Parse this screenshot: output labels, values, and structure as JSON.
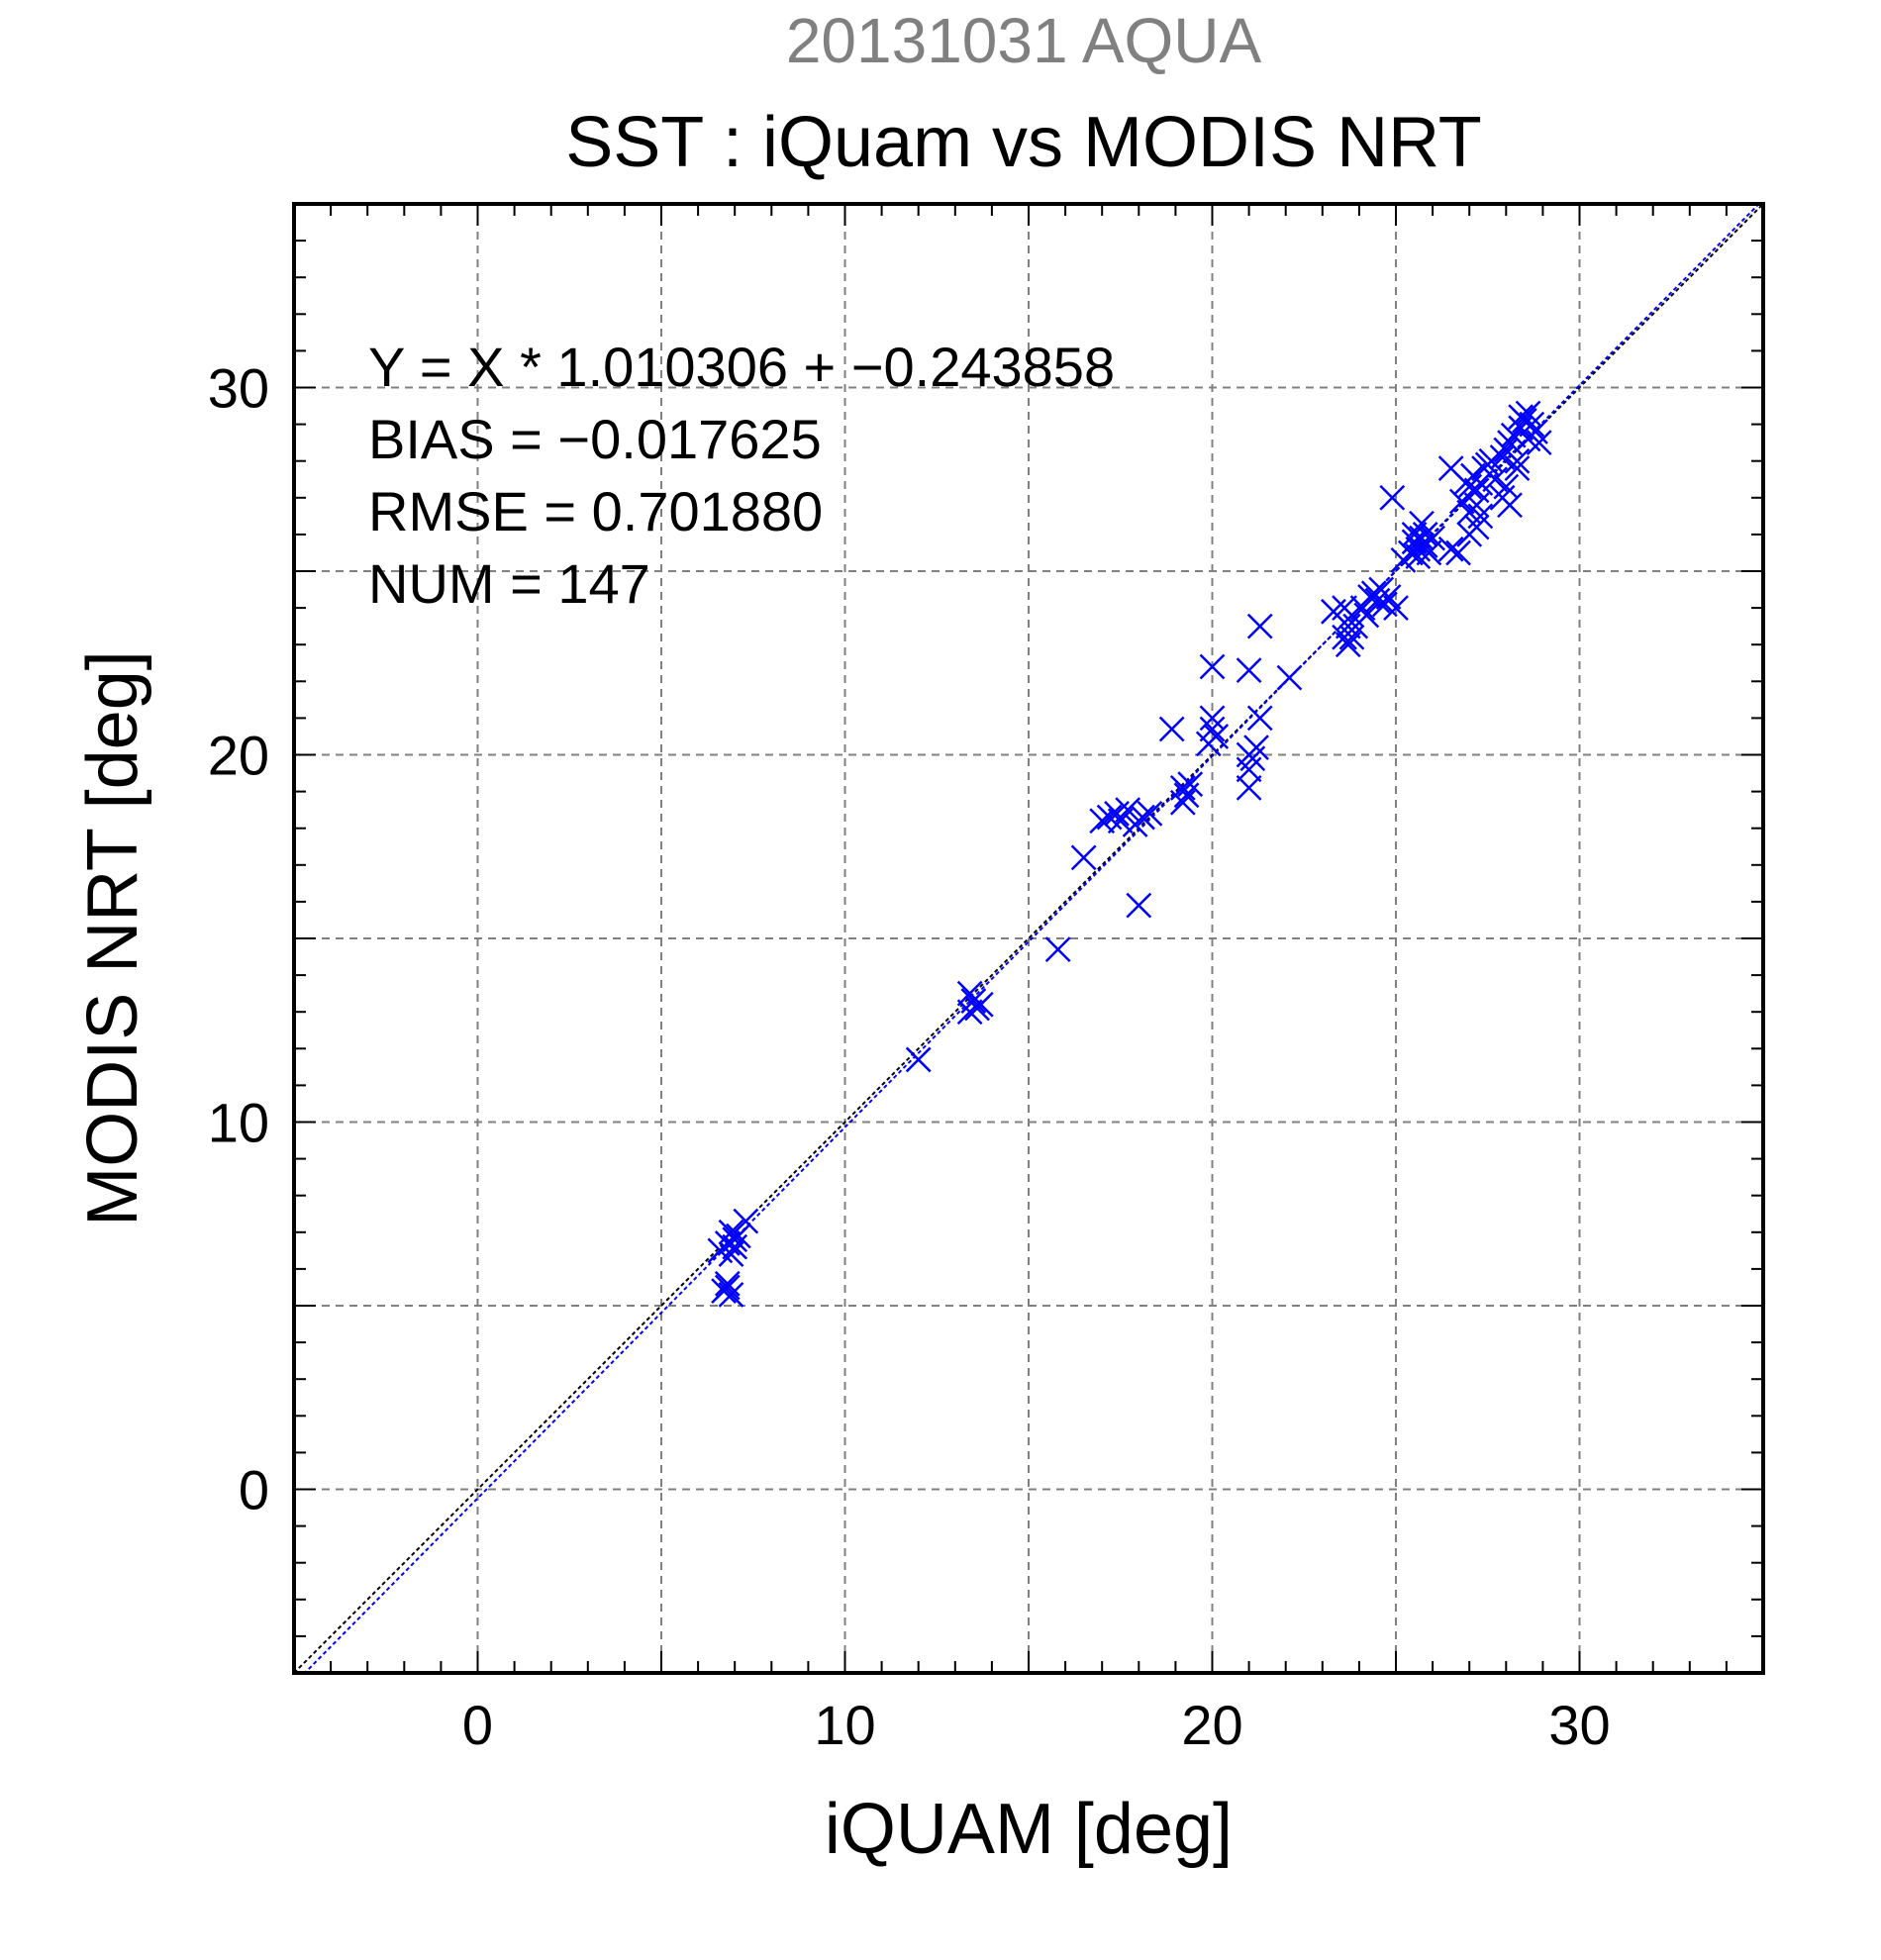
{
  "chart_data": {
    "type": "scatter",
    "supertitle": "20131031 AQUA",
    "title": "SST : iQuam vs MODIS NRT",
    "xlabel": "iQUAM [deg]",
    "ylabel": "MODIS NRT [deg]",
    "xlim": [
      -5,
      35
    ],
    "ylim": [
      -5,
      35
    ],
    "x_ticks": [
      0,
      10,
      20,
      30
    ],
    "y_ticks": [
      0,
      10,
      20,
      30
    ],
    "grid": true,
    "stats": [
      "Y = X * 1.010306 + −0.243858",
      "BIAS = −0.017625",
      "RMSE = 0.701880",
      "NUM = 147"
    ],
    "fit_line": {
      "slope": 1.010306,
      "intercept": -0.243858
    },
    "reference_line": {
      "slope": 1,
      "intercept": 0
    },
    "colors": {
      "supertitle": "#808080",
      "points": "#0000ff",
      "reference": "#000000",
      "grid": "#808080"
    },
    "series": [
      {
        "marker": "x",
        "points": [
          [
            6.7,
            5.4
          ],
          [
            6.8,
            5.6
          ],
          [
            6.9,
            5.3
          ],
          [
            6.8,
            5.5
          ],
          [
            6.6,
            6.5
          ],
          [
            6.8,
            6.7
          ],
          [
            6.9,
            7.0
          ],
          [
            7.0,
            6.8
          ],
          [
            7.1,
            6.9
          ],
          [
            7.3,
            7.3
          ],
          [
            6.9,
            6.4
          ],
          [
            7.0,
            6.6
          ],
          [
            12.0,
            11.7
          ],
          [
            13.4,
            13.5
          ],
          [
            13.5,
            13.3
          ],
          [
            13.6,
            13.1
          ],
          [
            13.4,
            13.0
          ],
          [
            13.7,
            13.2
          ],
          [
            15.8,
            14.7
          ],
          [
            16.5,
            17.2
          ],
          [
            17.0,
            18.2
          ],
          [
            17.2,
            18.3
          ],
          [
            17.4,
            18.4
          ],
          [
            17.5,
            18.2
          ],
          [
            17.7,
            18.5
          ],
          [
            17.9,
            18.1
          ],
          [
            18.1,
            18.3
          ],
          [
            18.3,
            18.4
          ],
          [
            18.0,
            15.9
          ],
          [
            18.9,
            20.7
          ],
          [
            19.2,
            19.1
          ],
          [
            19.3,
            18.9
          ],
          [
            19.2,
            18.7
          ],
          [
            19.4,
            19.2
          ],
          [
            19.9,
            20.3
          ],
          [
            20.0,
            20.7
          ],
          [
            20.0,
            22.4
          ],
          [
            20.1,
            20.5
          ],
          [
            20.0,
            21.0
          ],
          [
            21.0,
            20.0
          ],
          [
            21.0,
            19.6
          ],
          [
            21.0,
            19.1
          ],
          [
            21.1,
            19.9
          ],
          [
            21.0,
            22.3
          ],
          [
            21.2,
            20.2
          ],
          [
            21.3,
            21.0
          ],
          [
            21.3,
            23.5
          ],
          [
            22.1,
            22.1
          ],
          [
            23.3,
            23.9
          ],
          [
            23.6,
            24.0
          ],
          [
            23.7,
            23.5
          ],
          [
            23.8,
            23.8
          ],
          [
            23.6,
            23.2
          ],
          [
            23.8,
            23.2
          ],
          [
            23.7,
            23.0
          ],
          [
            23.9,
            23.5
          ],
          [
            24.1,
            24.0
          ],
          [
            24.2,
            23.8
          ],
          [
            24.4,
            24.4
          ],
          [
            24.5,
            24.2
          ],
          [
            24.6,
            24.5
          ],
          [
            24.8,
            24.3
          ],
          [
            24.7,
            24.1
          ],
          [
            25.0,
            24.0
          ],
          [
            24.3,
            24.3
          ],
          [
            24.9,
            27.0
          ],
          [
            25.2,
            25.3
          ],
          [
            25.4,
            25.5
          ],
          [
            25.5,
            25.8
          ],
          [
            25.6,
            25.6
          ],
          [
            25.7,
            25.9
          ],
          [
            25.8,
            26.0
          ],
          [
            25.6,
            25.4
          ],
          [
            25.8,
            25.7
          ],
          [
            25.9,
            25.5
          ],
          [
            25.5,
            26.0
          ],
          [
            25.7,
            26.3
          ],
          [
            26.0,
            25.9
          ],
          [
            26.5,
            25.6
          ],
          [
            26.7,
            25.5
          ],
          [
            26.5,
            27.8
          ],
          [
            26.8,
            26.9
          ],
          [
            27.0,
            27.3
          ],
          [
            27.1,
            27.6
          ],
          [
            26.9,
            27.4
          ],
          [
            27.2,
            27.2
          ],
          [
            27.0,
            26.0
          ],
          [
            27.2,
            26.2
          ],
          [
            27.3,
            26.5
          ],
          [
            27.4,
            27.8
          ],
          [
            27.5,
            27.9
          ],
          [
            27.3,
            27.4
          ],
          [
            27.6,
            28.0
          ],
          [
            27.7,
            27.5
          ],
          [
            27.0,
            26.6
          ],
          [
            27.2,
            26.8
          ],
          [
            27.9,
            28.1
          ],
          [
            28.0,
            28.3
          ],
          [
            28.1,
            28.5
          ],
          [
            28.2,
            28.7
          ],
          [
            27.9,
            27.0
          ],
          [
            28.0,
            27.3
          ],
          [
            28.1,
            26.8
          ],
          [
            28.3,
            28.0
          ],
          [
            28.4,
            28.9
          ],
          [
            28.5,
            29.1
          ],
          [
            28.6,
            29.3
          ],
          [
            28.7,
            29.0
          ],
          [
            28.8,
            28.8
          ],
          [
            28.4,
            29.2
          ],
          [
            28.6,
            28.6
          ],
          [
            28.9,
            28.5
          ],
          [
            28.3,
            27.8
          ]
        ]
      }
    ]
  }
}
